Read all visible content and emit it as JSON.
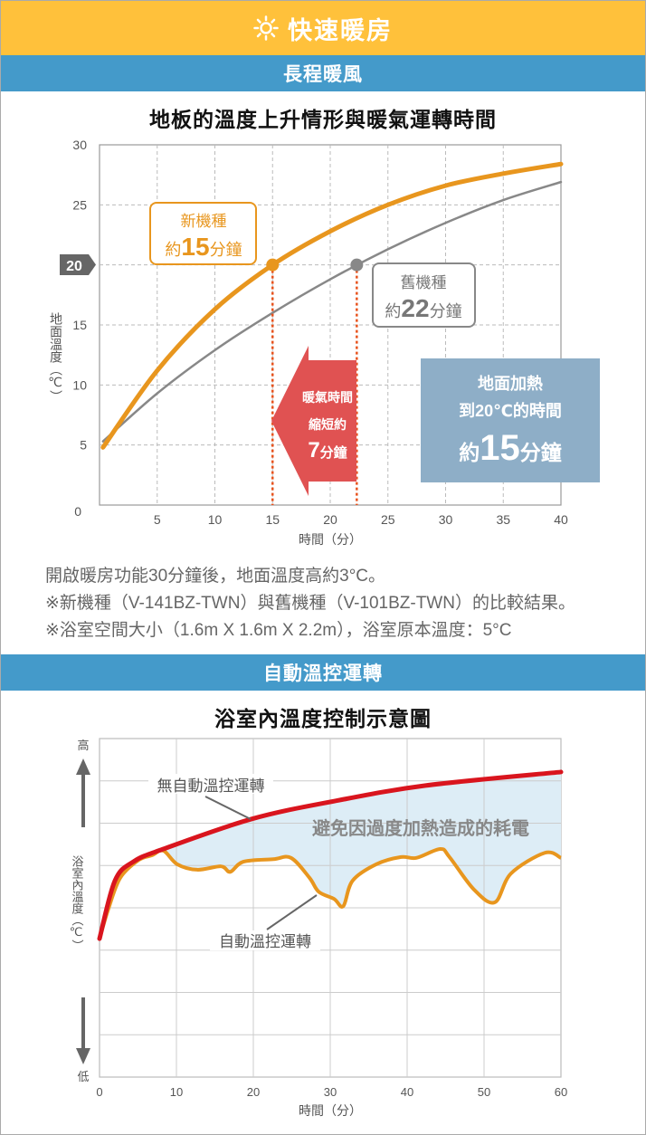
{
  "header": {
    "title": "快速暖房",
    "icon": "sun-icon",
    "color": "#FFC13B"
  },
  "section1": {
    "band": "長程暖風",
    "band_color": "#449ACA"
  },
  "section2": {
    "band": "自動溫控運轉"
  },
  "notes": [
    "開啟暖房功能30分鐘後，地面溫度高約3°C。",
    "※新機種（V-141BZ-TWN）與舊機種（V-101BZ-TWN）的比較結果。",
    "※浴室空間大小（1.6m X 1.6m X 2.2m），浴室原本溫度：5°C"
  ],
  "chart_data": [
    {
      "type": "line",
      "title": "地板的溫度上升情形與暖氣運轉時間",
      "xlabel": "時間（分）",
      "ylabel": "地面溫度（℃）",
      "xlim": [
        0,
        40
      ],
      "ylim": [
        0,
        30
      ],
      "xticks": [
        "5",
        "10",
        "15",
        "20",
        "25",
        "30",
        "35",
        "40"
      ],
      "yticks": [
        "0",
        "5",
        "10",
        "15",
        "20",
        "25",
        "30"
      ],
      "origin_label": "0",
      "highlight_tick": "20",
      "grid": true,
      "series": [
        {
          "name": "新機種",
          "color": "#E8961E",
          "x": [
            0.3,
            5,
            10,
            15,
            20,
            25,
            30,
            35,
            40
          ],
          "y": [
            4.8,
            11.2,
            16.3,
            20,
            22.8,
            25,
            26.6,
            27.6,
            28.4
          ]
        },
        {
          "name": "舊機種",
          "color": "#888888",
          "x": [
            0.3,
            5,
            10,
            15,
            20,
            25,
            30,
            35,
            40
          ],
          "y": [
            5.3,
            9.3,
            12.9,
            16.0,
            18.8,
            21.3,
            23.5,
            25.4,
            26.9
          ]
        }
      ],
      "markers": [
        {
          "series": "新機種",
          "x": 15,
          "y": 20
        },
        {
          "series": "舊機種",
          "x": 22.3,
          "y": 20
        }
      ],
      "annotations": {
        "new": {
          "label": "新機種",
          "prefix": "約",
          "value": "15",
          "unit": "分鐘"
        },
        "old": {
          "label": "舊機種",
          "prefix": "約",
          "value": "22",
          "unit": "分鐘"
        },
        "arrow": {
          "line1": "暖氣時間",
          "line2": "縮短約",
          "value": "7",
          "unit": "分鐘",
          "color": "#E05252"
        },
        "box": {
          "line1": "地面加熱",
          "line2": "到20℃的時間",
          "prefix": "約",
          "value": "15",
          "unit": "分鐘",
          "color": "#8EAEC7"
        }
      }
    },
    {
      "type": "line",
      "title": "浴室內溫度控制示意圖",
      "xlabel": "時間（分）",
      "ylabel": "浴室內溫度（℃）",
      "y_high": "高",
      "y_low": "低",
      "xlim": [
        0,
        60
      ],
      "ylim": [
        0,
        8
      ],
      "xticks": [
        "0",
        "10",
        "20",
        "30",
        "40",
        "50",
        "60"
      ],
      "grid": true,
      "series": [
        {
          "name": "無自動溫控運轉",
          "color": "#D9151E",
          "x": [
            0,
            2,
            4.4,
            8.3,
            19.8,
            30.5,
            42.4,
            60
          ],
          "y": [
            3.27,
            4.64,
            5.09,
            5.39,
            6.1,
            6.52,
            6.89,
            7.21
          ]
        },
        {
          "name": "自動溫控運轉",
          "color": "#E8961E",
          "x": [
            0,
            1.2,
            2.7,
            5.1,
            6.8,
            8.3,
            10.1,
            12.7,
            15.8,
            17,
            18.7,
            22.6,
            24.9,
            27.3,
            28.5,
            30.5,
            31.7,
            32.9,
            36,
            39.2,
            41.2,
            44.3,
            45.5,
            48.7,
            51.4,
            53.5,
            57.9,
            60
          ],
          "y": [
            3.27,
            4.0,
            4.71,
            5.13,
            5.24,
            5.35,
            5.03,
            4.9,
            4.98,
            4.85,
            5.09,
            5.15,
            5.18,
            4.71,
            4.38,
            4.21,
            4.04,
            4.64,
            5.03,
            5.2,
            5.18,
            5.39,
            5.2,
            4.43,
            4.13,
            4.81,
            5.3,
            5.18
          ]
        }
      ],
      "fill_label": "避免因過度加熱造成的耗電",
      "fill_color": "#DDEDF6"
    }
  ]
}
